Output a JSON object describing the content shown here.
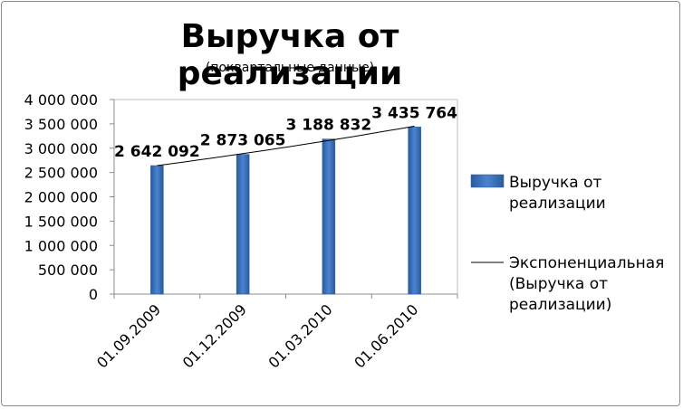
{
  "chart_data": {
    "type": "bar",
    "title": "Выручка от реализации",
    "subtitle": "(поквартальные данные)",
    "categories": [
      "01.09.2009",
      "01.12.2009",
      "01.03.2010",
      "01.06.2010"
    ],
    "series": [
      {
        "name": "Выручка от реализации",
        "values": [
          2642092,
          2873065,
          3188832,
          3435764
        ],
        "color": "#3a6fb8"
      }
    ],
    "data_labels": [
      "2 642 092",
      "2 873 065",
      "3 188 832",
      "3 435 764"
    ],
    "trendline": {
      "type": "exponential",
      "name": "Экспоненциальная (Выручка от реализации)",
      "color": "#000000"
    },
    "ylim": [
      0,
      4000000
    ],
    "yticks": [
      0,
      500000,
      1000000,
      1500000,
      2000000,
      2500000,
      3000000,
      3500000,
      4000000
    ],
    "ytick_labels": [
      "0",
      "500 000",
      "1 000 000",
      "1 500 000",
      "2 000 000",
      "2 500 000",
      "3 000 000",
      "3 500 000",
      "4 000 000"
    ],
    "legend": {
      "position": "right",
      "items": [
        {
          "lines": [
            "Выручка от",
            "реализации"
          ],
          "kind": "bar"
        },
        {
          "lines": [
            "Экспоненциальная",
            "(Выручка от",
            "реализации)"
          ],
          "kind": "line"
        }
      ]
    }
  }
}
